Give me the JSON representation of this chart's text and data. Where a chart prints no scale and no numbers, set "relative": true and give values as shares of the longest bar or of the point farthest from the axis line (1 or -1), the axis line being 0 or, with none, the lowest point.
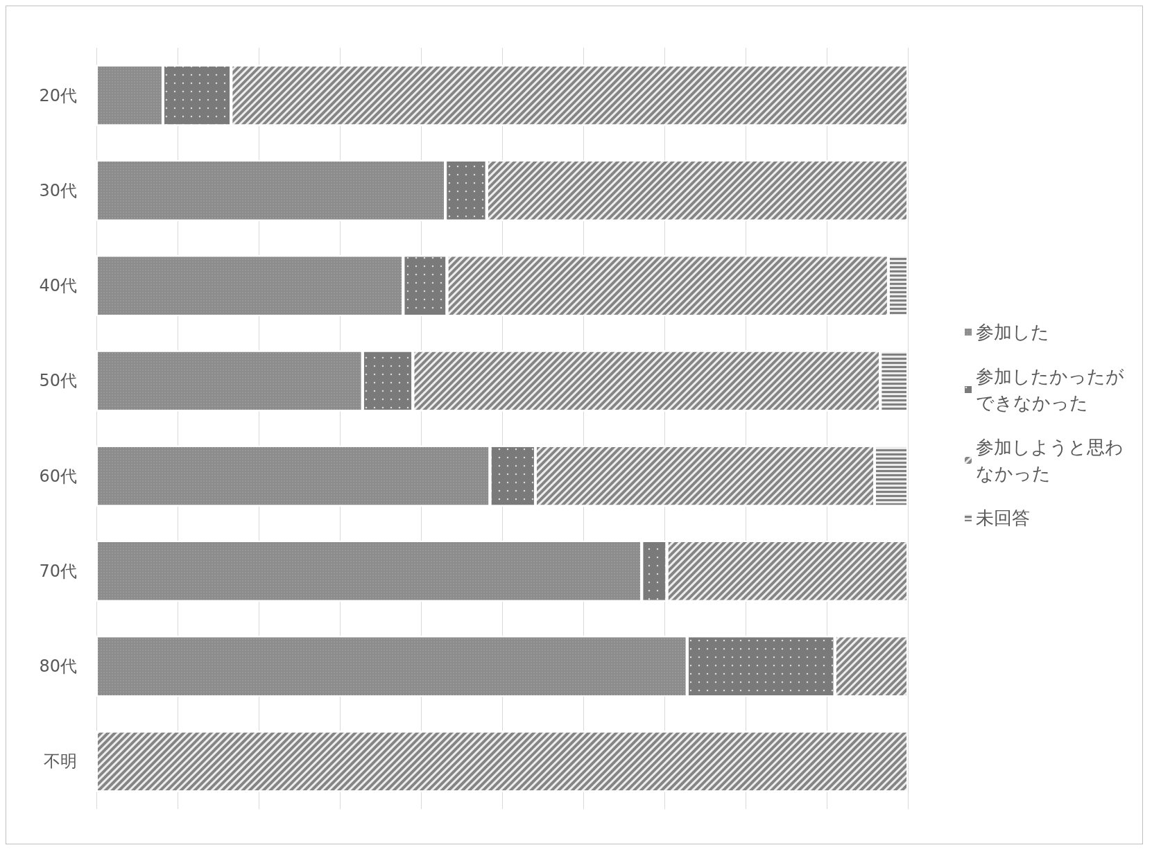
{
  "chart_data": {
    "type": "bar",
    "orientation": "horizontal",
    "stacked": true,
    "relative": true,
    "grid": "x",
    "legend": "right",
    "categories": [
      "20代",
      "30代",
      "40代",
      "50代",
      "60代",
      "70代",
      "80代",
      "不明"
    ],
    "series": [
      {
        "name": "参加した",
        "color": "#8c8c8c",
        "values": [
          0.082,
          0.43,
          0.378,
          0.328,
          0.485,
          0.672,
          0.728,
          0
        ]
      },
      {
        "name": "参加したかったができなかった",
        "color": "#7a7a7a",
        "values": [
          0.084,
          0.051,
          0.054,
          0.062,
          0.056,
          0.031,
          0.182,
          0
        ]
      },
      {
        "name": "参加しようと思わなかった",
        "color": "#858585",
        "values": [
          0.834,
          0.519,
          0.544,
          0.576,
          0.418,
          0.297,
          0.09,
          1
        ]
      },
      {
        "name": "未回答",
        "color": "#808080",
        "values": [
          0,
          0,
          0.024,
          0.034,
          0.041,
          0,
          0,
          0
        ]
      }
    ]
  }
}
